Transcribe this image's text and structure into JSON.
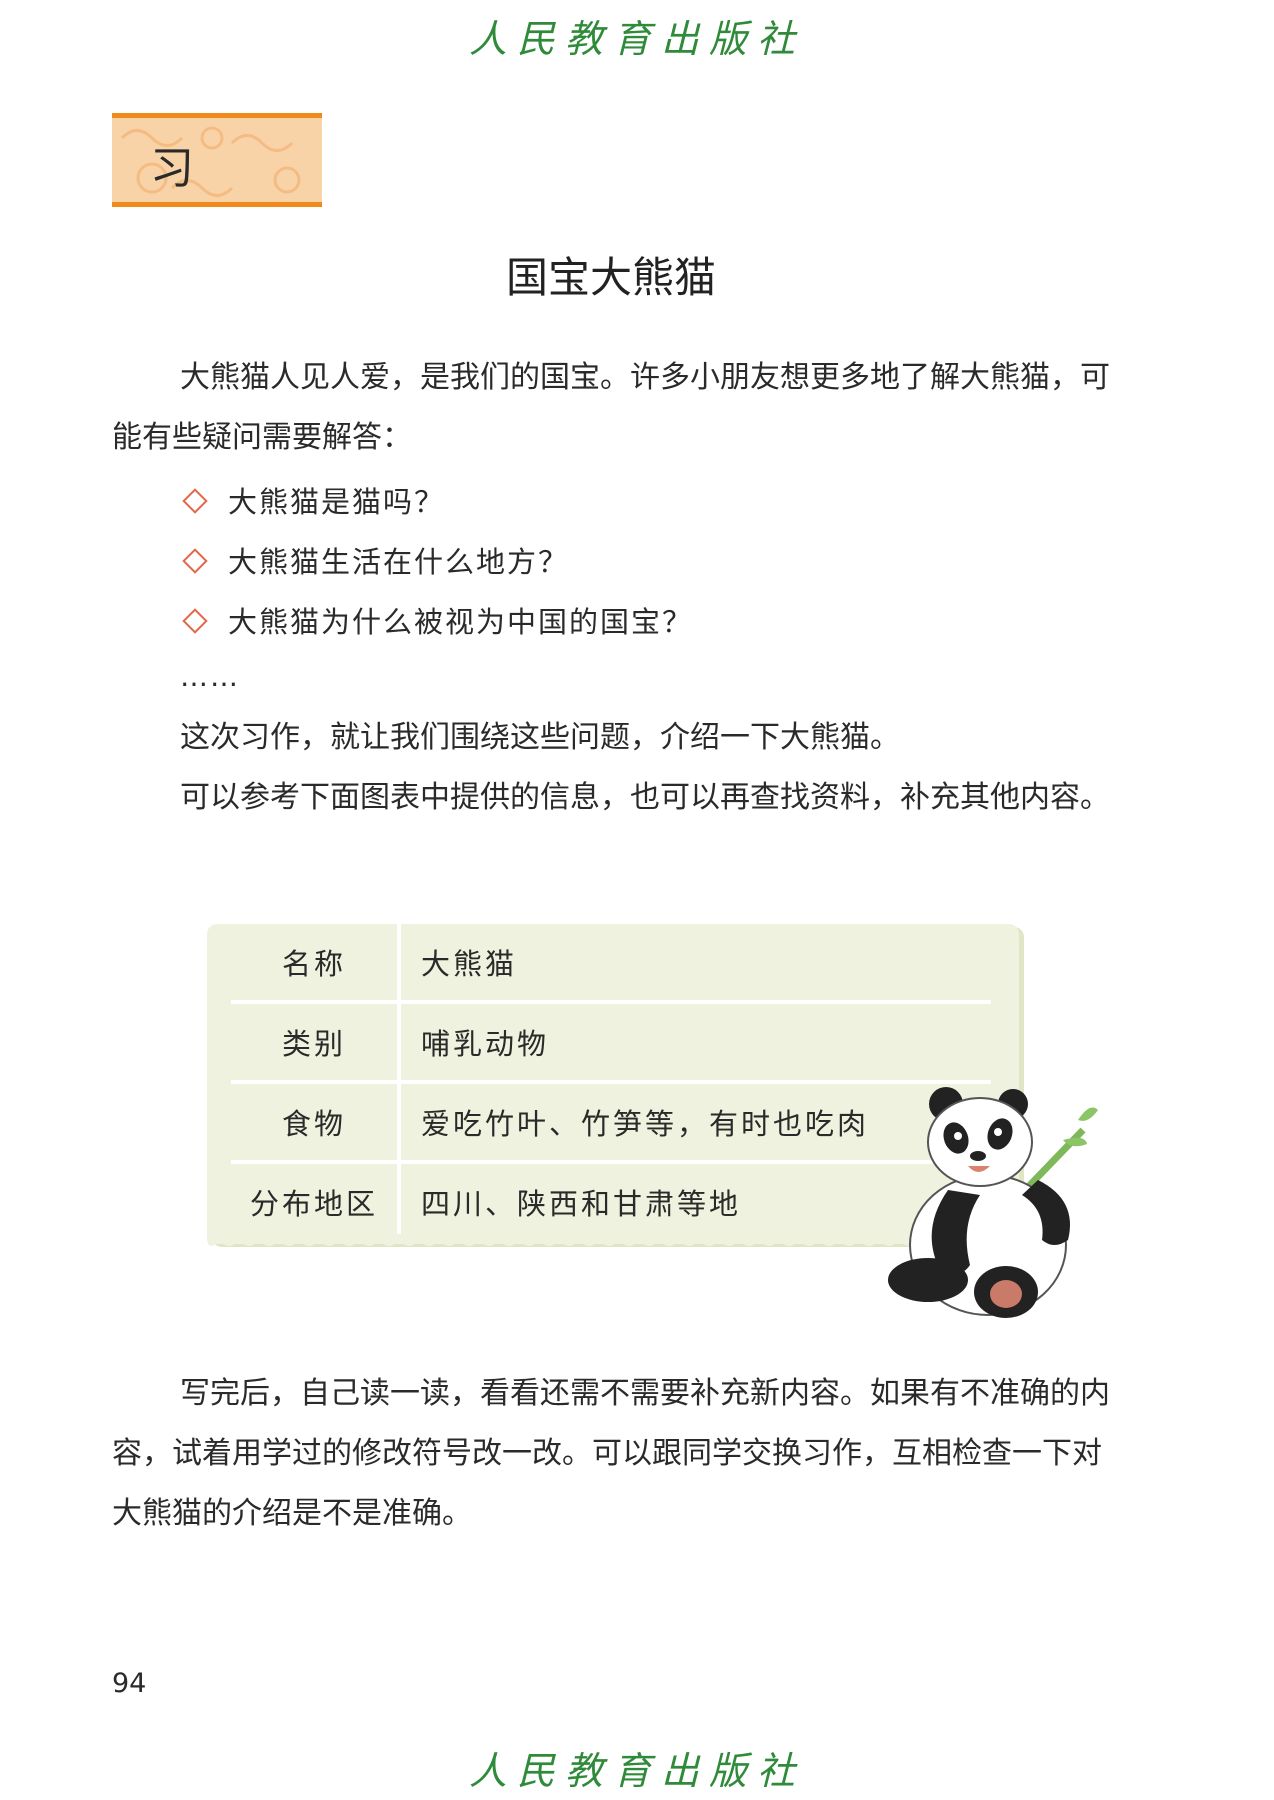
{
  "publisher": "人民教育出版社",
  "section_label": "习作",
  "title": "国宝大熊猫",
  "intro_text": "大熊猫人见人爱，是我们的国宝。许多小朋友想更多地了解大熊猫，可能有些疑问需要解答：",
  "questions": [
    "大熊猫是猫吗？",
    "大熊猫生活在什么地方？",
    "大熊猫为什么被视为中国的国宝？"
  ],
  "ellipsis": "……",
  "task_text": "这次习作，就让我们围绕这些问题，介绍一下大熊猫。",
  "reference_text": "可以参考下面图表中提供的信息，也可以再查找资料，补充其他内容。",
  "info_table": [
    {
      "key": "名称",
      "value": "大熊猫"
    },
    {
      "key": "类别",
      "value": "哺乳动物"
    },
    {
      "key": "食物",
      "value": "爱吃竹叶、竹笋等，有时也吃肉"
    },
    {
      "key": "分布地区",
      "value": "四川、陕西和甘肃等地"
    }
  ],
  "closing_text": "写完后，自己读一读，看看还需不需要补充新内容。如果有不准确的内容，试着用学过的修改符号改一改。可以跟同学交换习作，互相检查一下对大熊猫的介绍是不是准确。",
  "page_number": "94",
  "colors": {
    "publisher_green": "#2f8a3a",
    "badge_orange": "#f08a1c",
    "badge_fill": "#f9d3a8",
    "card_bg": "#eef2de",
    "diamond": "#e26a4a"
  }
}
